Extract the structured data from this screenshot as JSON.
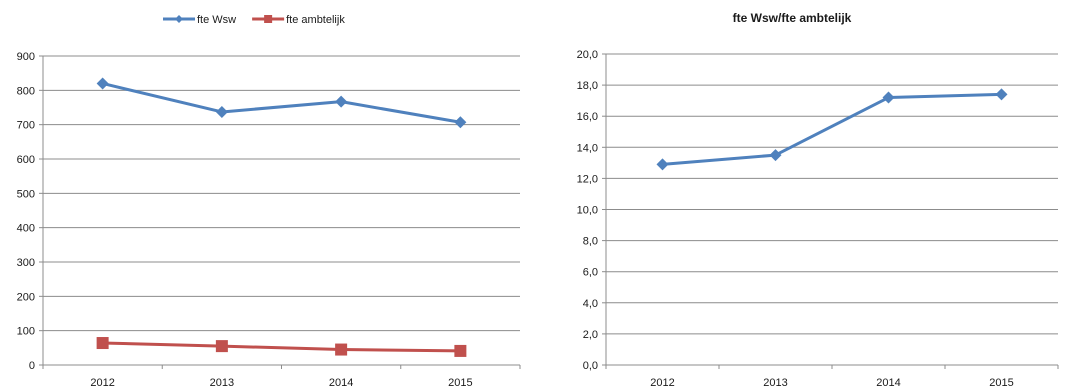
{
  "chart_data": [
    {
      "type": "line",
      "title": "",
      "xlabel": "",
      "ylabel": "",
      "categories": [
        "2012",
        "2013",
        "2014",
        "2015"
      ],
      "ylim": [
        0,
        900
      ],
      "yticks": [
        "0",
        "100",
        "200",
        "300",
        "400",
        "500",
        "600",
        "700",
        "800",
        "900"
      ],
      "grid": true,
      "legend_position": "top",
      "series": [
        {
          "name": "fte Wsw",
          "values": [
            820,
            737,
            767,
            707
          ],
          "color": "#4f81bd",
          "marker": "diamond"
        },
        {
          "name": "fte ambtelijk",
          "values": [
            64,
            55,
            45,
            41
          ],
          "color": "#c0504d",
          "marker": "square"
        }
      ]
    },
    {
      "type": "line",
      "title": "fte Wsw/fte ambtelijk",
      "xlabel": "",
      "ylabel": "",
      "categories": [
        "2012",
        "2013",
        "2014",
        "2015"
      ],
      "ylim": [
        0,
        20
      ],
      "yticks": [
        "0,0",
        "2,0",
        "4,0",
        "6,0",
        "8,0",
        "10,0",
        "12,0",
        "14,0",
        "16,0",
        "18,0",
        "20,0"
      ],
      "grid": true,
      "legend_position": "none",
      "series": [
        {
          "values": [
            12.9,
            13.5,
            17.2,
            17.4
          ],
          "color": "#4f81bd",
          "marker": "diamond"
        }
      ]
    }
  ]
}
